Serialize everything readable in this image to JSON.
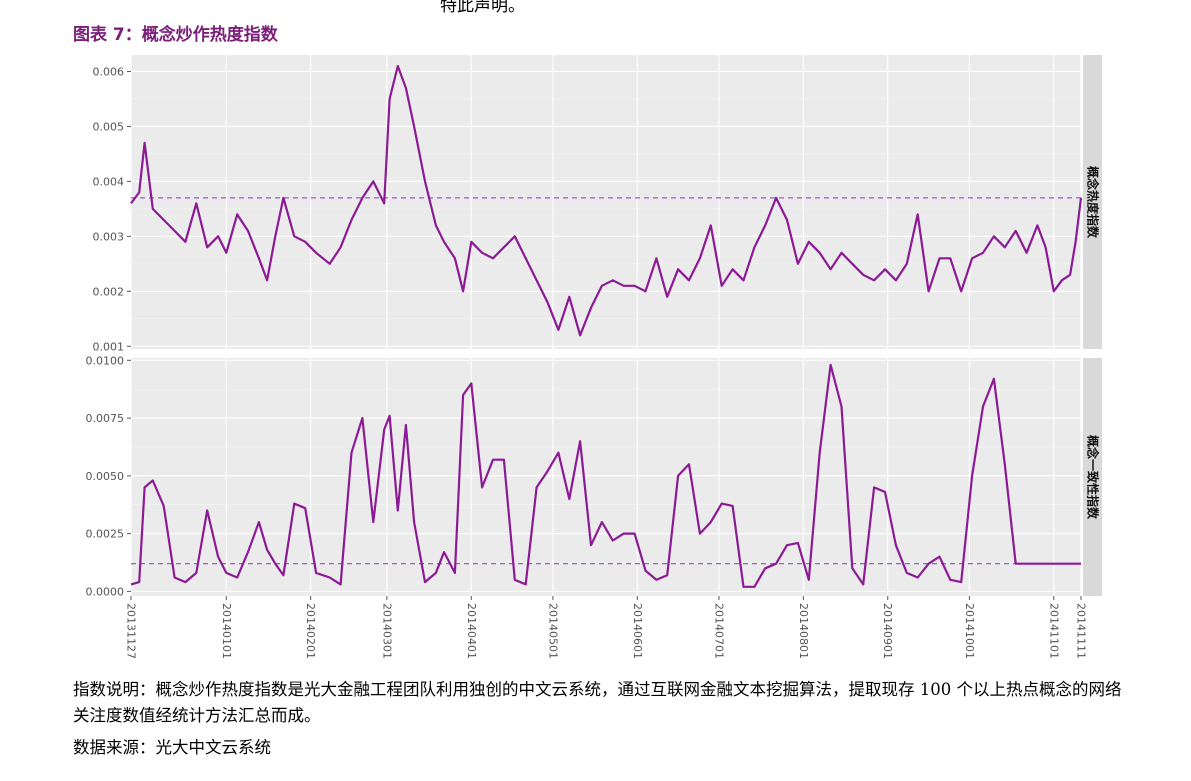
{
  "header": {
    "cut_text": "特此声明。",
    "figure_title": "图表 7：概念炒作热度指数"
  },
  "colors": {
    "line": "#8b1a94",
    "reference": "#9b59d0",
    "panel_bg": "#ebebeb",
    "strip_bg": "#d9d9d9"
  },
  "chart_data": [
    {
      "type": "line",
      "facet_label": "概念热度指数",
      "xlabel": "",
      "ylabel": "",
      "x_ticks": [
        "20131127",
        "20140101",
        "20140201",
        "20140301",
        "20140401",
        "20140501",
        "20140601",
        "20140701",
        "20140801",
        "20140901",
        "20141001",
        "20141101",
        "20141111"
      ],
      "y_ticks": [
        "0.001",
        "0.002",
        "0.003",
        "0.004",
        "0.005",
        "0.006"
      ],
      "ylim": [
        0.00095,
        0.0063
      ],
      "reference_line": 0.0037,
      "grid": true,
      "x": [
        "2013-11-27",
        "2013-11-30",
        "2013-12-02",
        "2013-12-05",
        "2013-12-09",
        "2013-12-13",
        "2013-12-17",
        "2013-12-21",
        "2013-12-25",
        "2013-12-29",
        "2014-01-01",
        "2014-01-05",
        "2014-01-09",
        "2014-01-13",
        "2014-01-16",
        "2014-01-19",
        "2014-01-22",
        "2014-01-26",
        "2014-01-30",
        "2014-02-03",
        "2014-02-08",
        "2014-02-12",
        "2014-02-16",
        "2014-02-20",
        "2014-02-24",
        "2014-02-28",
        "2014-03-02",
        "2014-03-05",
        "2014-03-08",
        "2014-03-11",
        "2014-03-15",
        "2014-03-19",
        "2014-03-22",
        "2014-03-26",
        "2014-03-29",
        "2014-04-01",
        "2014-04-05",
        "2014-04-09",
        "2014-04-13",
        "2014-04-17",
        "2014-04-21",
        "2014-04-25",
        "2014-04-29",
        "2014-05-03",
        "2014-05-07",
        "2014-05-11",
        "2014-05-15",
        "2014-05-19",
        "2014-05-23",
        "2014-05-27",
        "2014-05-31",
        "2014-06-04",
        "2014-06-08",
        "2014-06-12",
        "2014-06-16",
        "2014-06-20",
        "2014-06-24",
        "2014-06-28",
        "2014-07-02",
        "2014-07-06",
        "2014-07-10",
        "2014-07-14",
        "2014-07-18",
        "2014-07-22",
        "2014-07-26",
        "2014-07-30",
        "2014-08-03",
        "2014-08-07",
        "2014-08-11",
        "2014-08-15",
        "2014-08-19",
        "2014-08-23",
        "2014-08-27",
        "2014-08-31",
        "2014-09-04",
        "2014-09-08",
        "2014-09-12",
        "2014-09-16",
        "2014-09-20",
        "2014-09-24",
        "2014-09-28",
        "2014-10-02",
        "2014-10-06",
        "2014-10-10",
        "2014-10-14",
        "2014-10-18",
        "2014-10-22",
        "2014-10-26",
        "2014-10-29",
        "2014-11-01",
        "2014-11-04",
        "2014-11-07",
        "2014-11-09",
        "2014-11-11"
      ],
      "values": [
        0.0036,
        0.0038,
        0.0047,
        0.0035,
        0.0033,
        0.0031,
        0.0029,
        0.0036,
        0.0028,
        0.003,
        0.0027,
        0.0034,
        0.0031,
        0.0026,
        0.0022,
        0.003,
        0.0037,
        0.003,
        0.0029,
        0.0027,
        0.0025,
        0.0028,
        0.0033,
        0.0037,
        0.004,
        0.0036,
        0.0055,
        0.0061,
        0.0057,
        0.005,
        0.004,
        0.0032,
        0.0029,
        0.0026,
        0.002,
        0.0029,
        0.0027,
        0.0026,
        0.0028,
        0.003,
        0.0026,
        0.0022,
        0.0018,
        0.0013,
        0.0019,
        0.0012,
        0.0017,
        0.0021,
        0.0022,
        0.0021,
        0.0021,
        0.002,
        0.0026,
        0.0019,
        0.0024,
        0.0022,
        0.0026,
        0.0032,
        0.0021,
        0.0024,
        0.0022,
        0.0028,
        0.0032,
        0.0037,
        0.0033,
        0.0025,
        0.0029,
        0.0027,
        0.0024,
        0.0027,
        0.0025,
        0.0023,
        0.0022,
        0.0024,
        0.0022,
        0.0025,
        0.0034,
        0.002,
        0.0026,
        0.0026,
        0.002,
        0.0026,
        0.0027,
        0.003,
        0.0028,
        0.0031,
        0.0027,
        0.0032,
        0.0028,
        0.002,
        0.0022,
        0.0023,
        0.0029,
        0.0037
      ]
    },
    {
      "type": "line",
      "facet_label": "概念一致性指数",
      "xlabel": "",
      "ylabel": "",
      "x_ticks": [
        "20131127",
        "20140101",
        "20140201",
        "20140301",
        "20140401",
        "20140501",
        "20140601",
        "20140701",
        "20140801",
        "20140901",
        "20141001",
        "20141101",
        "20141111"
      ],
      "y_ticks": [
        "0.0000",
        "0.0025",
        "0.0050",
        "0.0075",
        "0.0100"
      ],
      "ylim": [
        -0.0002,
        0.0101
      ],
      "reference_line": 0.0012,
      "grid": true,
      "x": [
        "2013-11-27",
        "2013-11-30",
        "2013-12-02",
        "2013-12-05",
        "2013-12-09",
        "2013-12-13",
        "2013-12-17",
        "2013-12-21",
        "2013-12-25",
        "2013-12-29",
        "2014-01-01",
        "2014-01-05",
        "2014-01-09",
        "2014-01-13",
        "2014-01-16",
        "2014-01-19",
        "2014-01-22",
        "2014-01-26",
        "2014-01-30",
        "2014-02-03",
        "2014-02-08",
        "2014-02-12",
        "2014-02-16",
        "2014-02-20",
        "2014-02-24",
        "2014-02-28",
        "2014-03-02",
        "2014-03-05",
        "2014-03-08",
        "2014-03-11",
        "2014-03-15",
        "2014-03-19",
        "2014-03-22",
        "2014-03-26",
        "2014-03-29",
        "2014-04-01",
        "2014-04-05",
        "2014-04-09",
        "2014-04-13",
        "2014-04-17",
        "2014-04-21",
        "2014-04-25",
        "2014-04-29",
        "2014-05-03",
        "2014-05-07",
        "2014-05-11",
        "2014-05-15",
        "2014-05-19",
        "2014-05-23",
        "2014-05-27",
        "2014-05-31",
        "2014-06-04",
        "2014-06-08",
        "2014-06-12",
        "2014-06-16",
        "2014-06-20",
        "2014-06-24",
        "2014-06-28",
        "2014-07-02",
        "2014-07-06",
        "2014-07-10",
        "2014-07-14",
        "2014-07-18",
        "2014-07-22",
        "2014-07-26",
        "2014-07-30",
        "2014-08-03",
        "2014-08-07",
        "2014-08-11",
        "2014-08-15",
        "2014-08-19",
        "2014-08-23",
        "2014-08-27",
        "2014-08-31",
        "2014-09-04",
        "2014-09-08",
        "2014-09-12",
        "2014-09-16",
        "2014-09-20",
        "2014-09-24",
        "2014-09-28",
        "2014-10-02",
        "2014-10-06",
        "2014-10-10",
        "2014-10-14",
        "2014-10-18",
        "2014-10-22",
        "2014-10-26",
        "2014-10-29",
        "2014-11-01",
        "2014-11-04",
        "2014-11-07",
        "2014-11-09",
        "2014-11-11"
      ],
      "values": [
        0.0003,
        0.0004,
        0.0045,
        0.0048,
        0.0037,
        0.0006,
        0.0004,
        0.0008,
        0.0035,
        0.0015,
        0.0008,
        0.0006,
        0.0017,
        0.003,
        0.0018,
        0.0012,
        0.0007,
        0.0038,
        0.0036,
        0.0008,
        0.0006,
        0.0003,
        0.006,
        0.0075,
        0.003,
        0.007,
        0.0076,
        0.0035,
        0.0072,
        0.003,
        0.0004,
        0.0008,
        0.0017,
        0.0008,
        0.0085,
        0.009,
        0.0045,
        0.0057,
        0.0057,
        0.0005,
        0.0003,
        0.0045,
        0.0052,
        0.006,
        0.004,
        0.0065,
        0.002,
        0.003,
        0.0022,
        0.0025,
        0.0025,
        0.0009,
        0.0005,
        0.0007,
        0.005,
        0.0055,
        0.0025,
        0.003,
        0.0038,
        0.0037,
        0.0002,
        0.0002,
        0.001,
        0.0012,
        0.002,
        0.0021,
        0.0005,
        0.006,
        0.0098,
        0.008,
        0.001,
        0.0003,
        0.0045,
        0.0043,
        0.002,
        0.0008,
        0.0006,
        0.0012,
        0.0015,
        0.0005,
        0.0004,
        0.005,
        0.008,
        0.0092,
        0.0055,
        0.0012,
        0.0012,
        0.0012,
        0.0012,
        0.0012,
        0.0012,
        0.0012,
        0.0012,
        0.0012
      ]
    }
  ],
  "notes": {
    "line1": "指数说明：概念炒作热度指数是光大金融工程团队利用独创的中文云系统，通过互联网金融文本挖掘算法，提取现存 100 个以上热点概念的网络关注度数值经统计方法汇总而成。",
    "line2": "数据来源：光大中文云系统"
  }
}
